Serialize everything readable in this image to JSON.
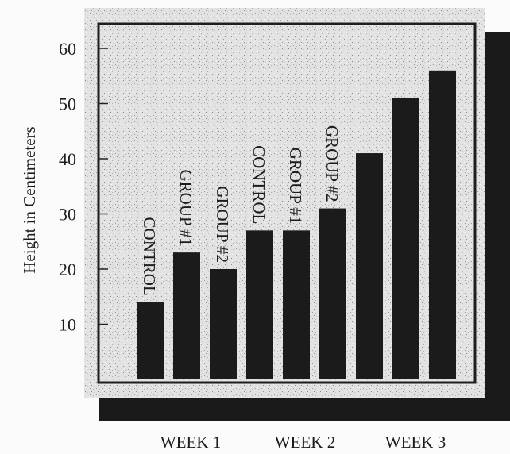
{
  "chart_data": {
    "type": "bar",
    "ylabel": "Height in Centimeters",
    "ylim": [
      0,
      65
    ],
    "yticks": [
      10,
      20,
      30,
      40,
      50,
      60
    ],
    "categories": [
      "WEEK 1",
      "WEEK 2",
      "WEEK 3"
    ],
    "bars": [
      {
        "category": "WEEK 1",
        "label": "CONTROL",
        "value": 14
      },
      {
        "category": "WEEK 1",
        "label": "GROUP #1",
        "value": 23
      },
      {
        "category": "WEEK 1",
        "label": "GROUP #2",
        "value": 20
      },
      {
        "category": "WEEK 2",
        "label": "CONTROL",
        "value": 27
      },
      {
        "category": "WEEK 2",
        "label": "GROUP #1",
        "value": 27
      },
      {
        "category": "WEEK 2",
        "label": "GROUP #2",
        "value": 31
      },
      {
        "category": "WEEK 3",
        "label": "",
        "value": 41
      },
      {
        "category": "WEEK 3",
        "label": "",
        "value": 51
      },
      {
        "category": "WEEK 3",
        "label": "",
        "value": 56
      }
    ]
  }
}
